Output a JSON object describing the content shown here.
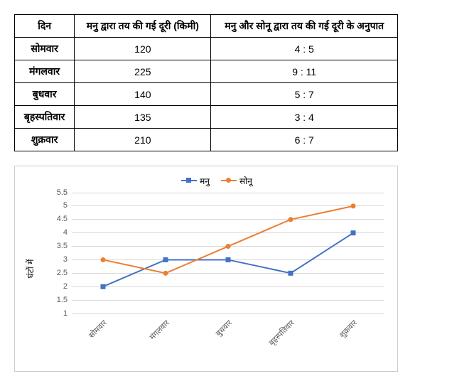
{
  "table": {
    "columns": [
      "दिन",
      "मनु द्वारा तय की गई दूरी (किमी)",
      "मनु और सोनू द्वारा तय की गई दूरी के अनुपात"
    ],
    "rows": [
      [
        "सोमवार",
        "120",
        "4 : 5"
      ],
      [
        "मंगलवार",
        "225",
        "9 : 11"
      ],
      [
        "बुधवार",
        "140",
        "5 : 7"
      ],
      [
        "बृहस्पतिवार",
        "135",
        "3 : 4"
      ],
      [
        "शुक्रवार",
        "210",
        "6 : 7"
      ]
    ]
  },
  "chart": {
    "type": "line",
    "y_axis_label": "घंटों में",
    "categories": [
      "सोमवार",
      "मंगलवार",
      "बुधवार",
      "बृहस्पतिवार",
      "शुक्रवार"
    ],
    "series": [
      {
        "name": "मनु",
        "color": "#4472c4",
        "marker": "square",
        "values": [
          2,
          3,
          3,
          2.5,
          4
        ]
      },
      {
        "name": "सोनू",
        "color": "#ed7d31",
        "marker": "circle",
        "values": [
          3,
          2.5,
          3.5,
          4.5,
          5
        ]
      }
    ],
    "ylim": [
      1,
      5.5
    ],
    "ytick_step": 0.5,
    "grid_color": "#d9d9d9",
    "background_color": "#ffffff",
    "label_fontsize": 11,
    "line_width": 2,
    "marker_size": 7
  }
}
